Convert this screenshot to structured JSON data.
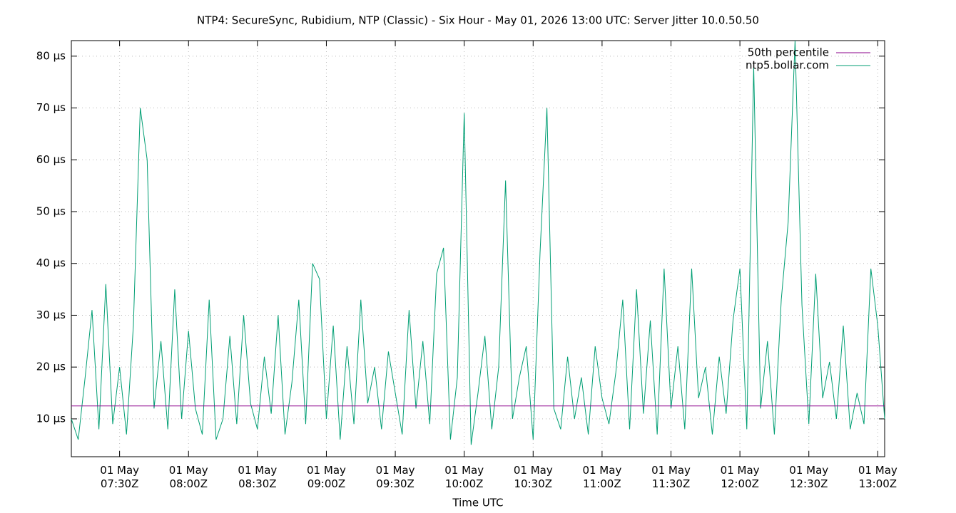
{
  "chart_data": {
    "type": "line",
    "title": "NTP4: SecureSync, Rubidium, NTP (Classic) - Six Hour - May 01, 2026 13:00 UTC: Server Jitter 10.0.50.50",
    "x_label": "Time UTC",
    "xlim": [
      "07:09",
      "13:03"
    ],
    "xticks": [
      {
        "value": "07:30",
        "label": "01 May\n07:30Z"
      },
      {
        "value": "08:00",
        "label": "01 May\n08:00Z"
      },
      {
        "value": "08:30",
        "label": "01 May\n08:30Z"
      },
      {
        "value": "09:00",
        "label": "01 May\n09:00Z"
      },
      {
        "value": "09:30",
        "label": "01 May\n09:30Z"
      },
      {
        "value": "10:00",
        "label": "01 May\n10:00Z"
      },
      {
        "value": "10:30",
        "label": "01 May\n10:30Z"
      },
      {
        "value": "11:00",
        "label": "01 May\n11:00Z"
      },
      {
        "value": "11:30",
        "label": "01 May\n11:30Z"
      },
      {
        "value": "12:00",
        "label": "01 May\n12:00Z"
      },
      {
        "value": "12:30",
        "label": "01 May\n12:30Z"
      },
      {
        "value": "13:00",
        "label": "01 May\n13:00Z"
      }
    ],
    "ylim": [
      2.7,
      83
    ],
    "yticks": [
      {
        "value": 10,
        "label": "10 µs"
      },
      {
        "value": 20,
        "label": "20 µs"
      },
      {
        "value": 30,
        "label": "30 µs"
      },
      {
        "value": 40,
        "label": "40 µs"
      },
      {
        "value": 50,
        "label": "50 µs"
      },
      {
        "value": 60,
        "label": "60 µs"
      },
      {
        "value": 70,
        "label": "70 µs"
      },
      {
        "value": 80,
        "label": "80 µs"
      }
    ],
    "grid": true,
    "legend": "top-right",
    "x": [
      "07:09",
      "07:12",
      "07:15",
      "07:18",
      "07:21",
      "07:24",
      "07:27",
      "07:30",
      "07:33",
      "07:36",
      "07:39",
      "07:42",
      "07:45",
      "07:48",
      "07:51",
      "07:54",
      "07:57",
      "08:00",
      "08:03",
      "08:06",
      "08:09",
      "08:12",
      "08:15",
      "08:18",
      "08:21",
      "08:24",
      "08:27",
      "08:30",
      "08:33",
      "08:36",
      "08:39",
      "08:42",
      "08:45",
      "08:48",
      "08:51",
      "08:54",
      "08:57",
      "09:00",
      "09:03",
      "09:06",
      "09:09",
      "09:12",
      "09:15",
      "09:18",
      "09:21",
      "09:24",
      "09:27",
      "09:30",
      "09:33",
      "09:36",
      "09:39",
      "09:42",
      "09:45",
      "09:48",
      "09:51",
      "09:54",
      "09:57",
      "10:00",
      "10:03",
      "10:06",
      "10:09",
      "10:12",
      "10:15",
      "10:18",
      "10:21",
      "10:24",
      "10:27",
      "10:30",
      "10:33",
      "10:36",
      "10:39",
      "10:42",
      "10:45",
      "10:48",
      "10:51",
      "10:54",
      "10:57",
      "11:00",
      "11:03",
      "11:06",
      "11:09",
      "11:12",
      "11:15",
      "11:18",
      "11:21",
      "11:24",
      "11:27",
      "11:30",
      "11:33",
      "11:36",
      "11:39",
      "11:42",
      "11:45",
      "11:48",
      "11:51",
      "11:54",
      "11:57",
      "12:00",
      "12:03",
      "12:06",
      "12:09",
      "12:12",
      "12:15",
      "12:18",
      "12:21",
      "12:24",
      "12:27",
      "12:30",
      "12:33",
      "12:36",
      "12:39",
      "12:42",
      "12:45",
      "12:48",
      "12:51",
      "12:54",
      "12:57",
      "13:00",
      "13:03"
    ],
    "series": [
      {
        "name": "50th percentile",
        "color": "#8b008b",
        "x": [
          "07:09",
          "13:03"
        ],
        "values": [
          12.5,
          12.5
        ]
      },
      {
        "name": "ntp5.bollar.com",
        "color": "#009e73",
        "values": [
          10,
          6,
          18,
          31,
          8,
          36,
          9,
          20,
          7,
          28,
          70,
          60,
          12,
          25,
          8,
          35,
          10,
          27,
          12,
          7,
          33,
          6,
          10,
          26,
          9,
          30,
          13,
          8,
          22,
          11,
          30,
          7,
          17,
          33,
          9,
          40,
          37,
          10,
          28,
          6,
          24,
          9,
          33,
          13,
          20,
          8,
          23,
          15,
          7,
          31,
          12,
          25,
          9,
          38,
          43,
          6,
          18,
          69,
          5,
          15,
          26,
          8,
          20,
          56,
          10,
          18,
          24,
          6,
          42,
          70,
          12,
          8,
          22,
          10,
          18,
          7,
          24,
          14,
          9,
          19,
          33,
          8,
          35,
          11,
          29,
          7,
          39,
          12,
          24,
          8,
          39,
          14,
          20,
          7,
          22,
          11,
          29,
          39,
          8,
          78,
          12,
          25,
          7,
          33,
          48,
          83,
          32,
          9,
          38,
          14,
          21,
          10,
          28,
          8,
          15,
          9,
          39,
          28,
          10
        ]
      }
    ]
  }
}
